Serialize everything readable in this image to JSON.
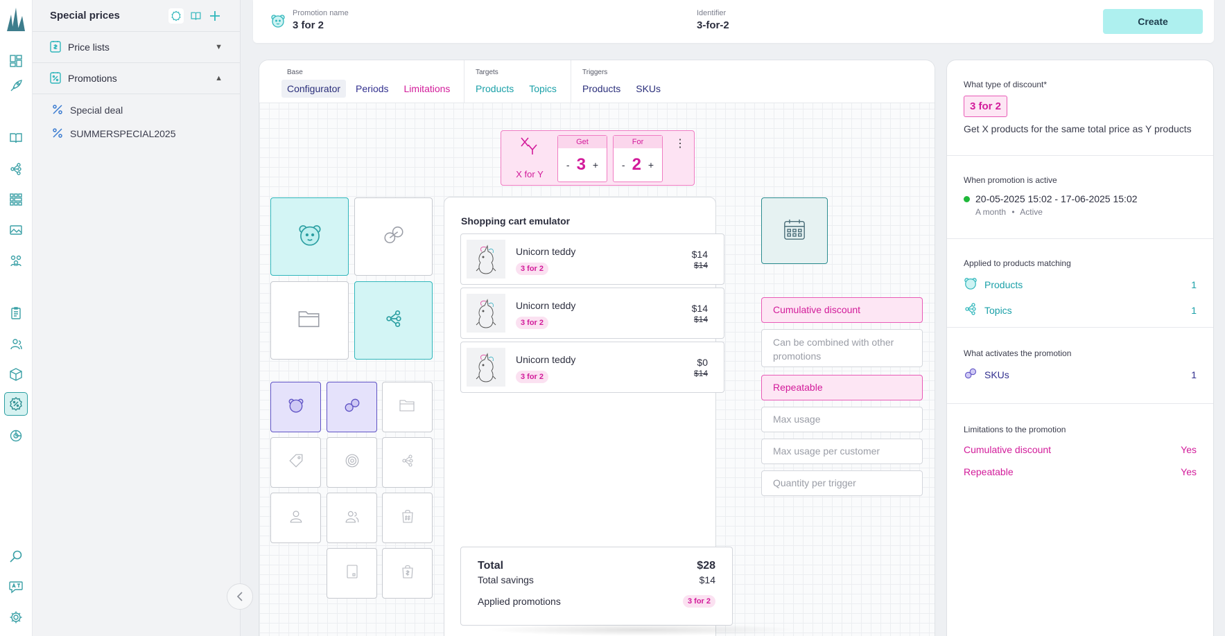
{
  "rail": {
    "icons": [
      "logo-icon",
      "dashboard-icon",
      "rocket-icon",
      "book-icon",
      "topics-icon",
      "catalog-icon",
      "image-icon",
      "people-network-icon",
      "clipboard-icon",
      "customers-icon",
      "box-icon",
      "discount-icon",
      "chart-icon",
      "search-icon",
      "translate-icon",
      "gear-icon"
    ],
    "active": "discount-icon"
  },
  "panel": {
    "title": "Special prices",
    "sections": [
      {
        "label": "Price lists",
        "expanded": false
      },
      {
        "label": "Promotions",
        "expanded": true
      }
    ],
    "promotions": [
      "Special deal",
      "SUMMERSPECIAL2025"
    ]
  },
  "topbar": {
    "name_label": "Promotion name",
    "name_value": "3 for 2",
    "identifier_label": "Identifier",
    "identifier_value": "3-for-2",
    "create_label": "Create"
  },
  "tabs": {
    "base_label": "Base",
    "base": [
      "Configurator",
      "Periods",
      "Limitations"
    ],
    "targets_label": "Targets",
    "targets": [
      "Products",
      "Topics"
    ],
    "triggers_label": "Triggers",
    "triggers": [
      "Products",
      "SKUs"
    ],
    "selected": "Configurator"
  },
  "configurator": {
    "type_label": "X for Y",
    "get_label": "Get",
    "get_value": "3",
    "for_label": "For",
    "for_value": "2",
    "minus": "-",
    "plus": "+"
  },
  "cart": {
    "title": "Shopping cart emulator",
    "items": [
      {
        "name": "Unicorn teddy",
        "badge": "3 for 2",
        "price": "$14",
        "old_price": "$14"
      },
      {
        "name": "Unicorn teddy",
        "badge": "3 for 2",
        "price": "$14",
        "old_price": "$14"
      },
      {
        "name": "Unicorn teddy",
        "badge": "3 for 2",
        "price": "$0",
        "old_price": "$14"
      }
    ],
    "total_label": "Total",
    "total_value": "$28",
    "savings_label": "Total savings",
    "savings_value": "$14",
    "applied_label": "Applied promotions",
    "applied_badge": "3 for 2"
  },
  "options": [
    {
      "label": "Cumulative discount",
      "on": true
    },
    {
      "label": "Can be combined with other promotions",
      "on": false
    },
    {
      "label": "Repeatable",
      "on": true
    },
    {
      "label": "Max usage",
      "on": false
    },
    {
      "label": "Max usage per customer",
      "on": false
    },
    {
      "label": "Quantity per trigger",
      "on": false
    }
  ],
  "summary": {
    "type_heading": "What type of discount*",
    "type_badge": "3 for 2",
    "type_desc": "Get X products for the same total price as Y products",
    "active_heading": "When promotion is active",
    "period": "20-05-2025 15:02 - 17-06-2025 15:02",
    "duration": "A month",
    "status": "Active",
    "status_color": "#1fb83a",
    "applied_heading": "Applied to products matching",
    "applied": [
      {
        "label": "Products",
        "count": "1"
      },
      {
        "label": "Topics",
        "count": "1"
      }
    ],
    "activates_heading": "What activates the promotion",
    "activates": [
      {
        "label": "SKUs",
        "count": "1"
      }
    ],
    "limits_heading": "Limitations to the promotion",
    "limits": [
      {
        "label": "Cumulative discount",
        "value": "Yes"
      },
      {
        "label": "Repeatable",
        "value": "Yes"
      }
    ]
  },
  "colors": {
    "accent_teal": "#2fb6bb",
    "accent_pink": "#d21b9a",
    "accent_navy": "#2a2e7a"
  }
}
